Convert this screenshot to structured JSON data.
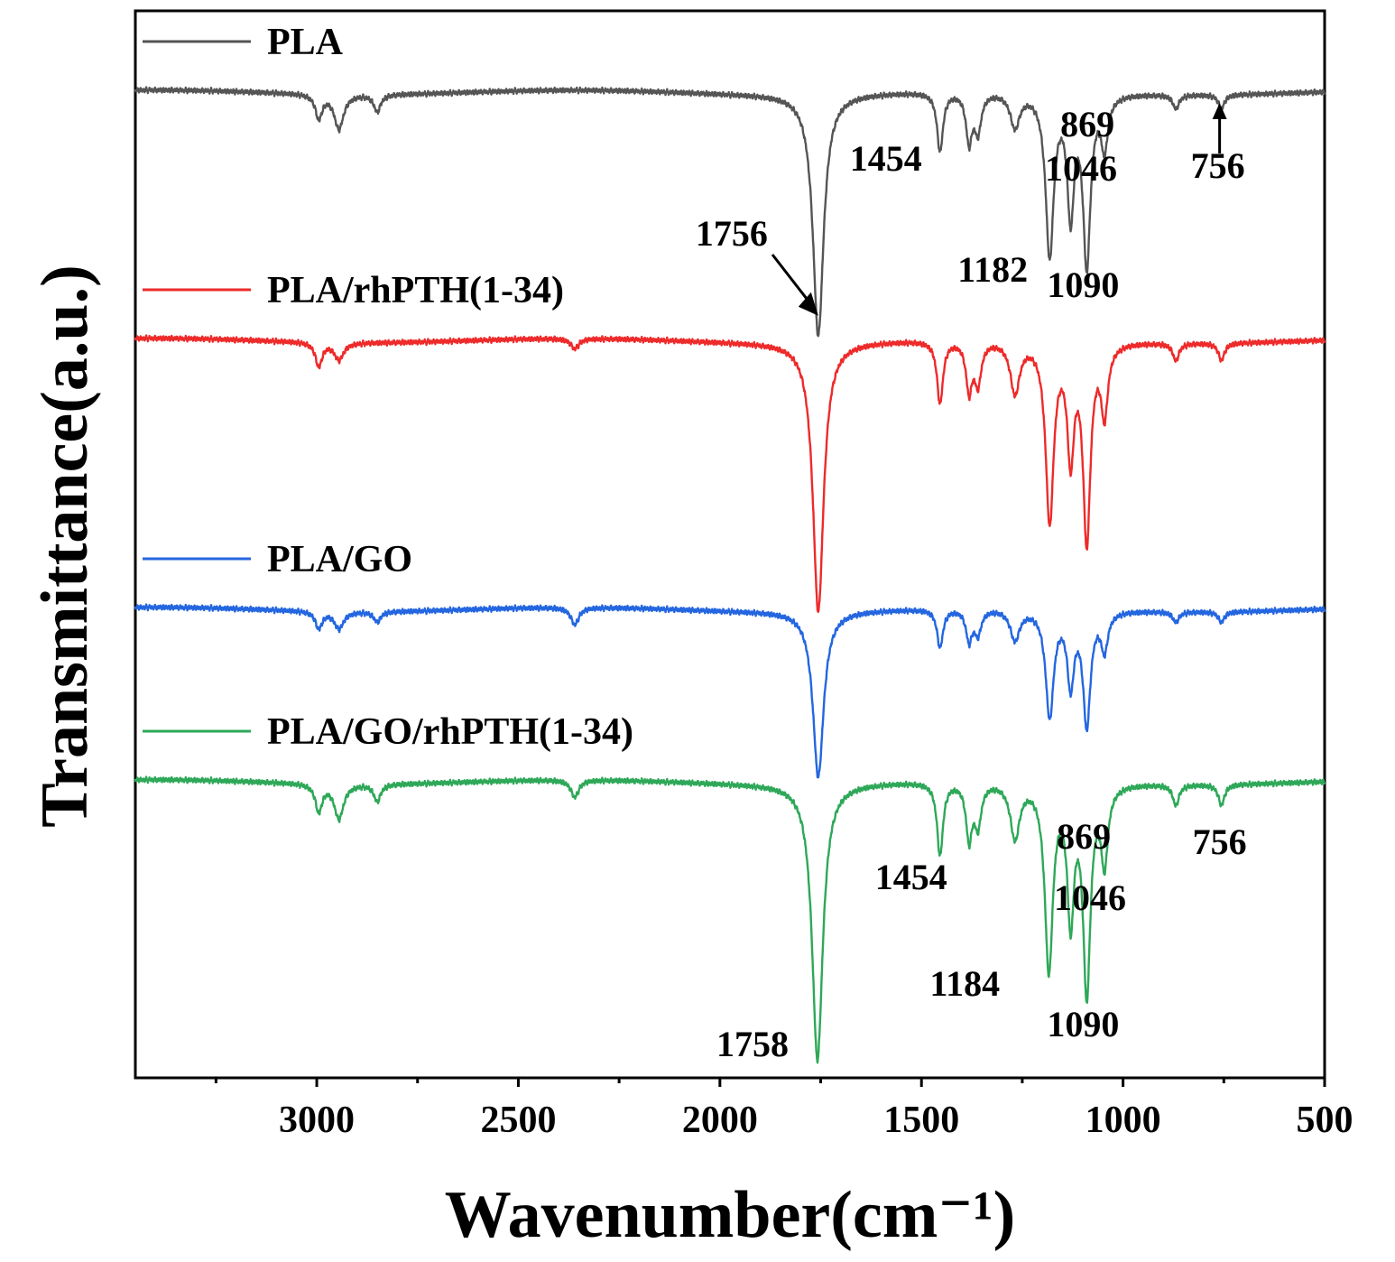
{
  "chart_data": {
    "type": "line",
    "title": "",
    "xlabel": "Wavenumber(cm⁻¹)",
    "ylabel": "Transmittance(a.u.)",
    "xlim": [
      3450,
      500
    ],
    "x_reversed": true,
    "y_ticks_shown": false,
    "grid": false,
    "legend_position": "inline above each trace",
    "xticks": [
      {
        "value": 3000,
        "label": "3000"
      },
      {
        "value": 2500,
        "label": "2500"
      },
      {
        "value": 2000,
        "label": "2000"
      },
      {
        "value": 1500,
        "label": "1500"
      },
      {
        "value": 1000,
        "label": "1000"
      },
      {
        "value": 500,
        "label": "500"
      }
    ],
    "minor_xticks": [
      3250,
      2750,
      2250,
      1750,
      1250,
      750
    ],
    "series": [
      {
        "name": "PLA",
        "color": "#555555",
        "baseline_offset": 3.0,
        "peaks": [
          {
            "wn": 2995,
            "depth": 0.07,
            "width": 10
          },
          {
            "wn": 2945,
            "depth": 0.1,
            "width": 14
          },
          {
            "wn": 2850,
            "depth": 0.05,
            "width": 10
          },
          {
            "wn": 1756,
            "depth": 0.7,
            "width": 16
          },
          {
            "wn": 1454,
            "depth": 0.17,
            "width": 9
          },
          {
            "wn": 1382,
            "depth": 0.14,
            "width": 9
          },
          {
            "wn": 1360,
            "depth": 0.11,
            "width": 10
          },
          {
            "wn": 1268,
            "depth": 0.1,
            "width": 14
          },
          {
            "wn": 1182,
            "depth": 0.47,
            "width": 12
          },
          {
            "wn": 1130,
            "depth": 0.34,
            "width": 10
          },
          {
            "wn": 1090,
            "depth": 0.49,
            "width": 11
          },
          {
            "wn": 1046,
            "depth": 0.15,
            "width": 10
          },
          {
            "wn": 869,
            "depth": 0.04,
            "width": 9
          },
          {
            "wn": 756,
            "depth": 0.04,
            "width": 9
          }
        ]
      },
      {
        "name": "PLA/rhPTH(1-34)",
        "color": "#ee2a2a",
        "baseline_offset": 2.28,
        "peaks": [
          {
            "wn": 2995,
            "depth": 0.07,
            "width": 10
          },
          {
            "wn": 2945,
            "depth": 0.05,
            "width": 14
          },
          {
            "wn": 2360,
            "depth": 0.03,
            "width": 12
          },
          {
            "wn": 1756,
            "depth": 0.78,
            "width": 16
          },
          {
            "wn": 1454,
            "depth": 0.18,
            "width": 9
          },
          {
            "wn": 1382,
            "depth": 0.14,
            "width": 9
          },
          {
            "wn": 1360,
            "depth": 0.12,
            "width": 10
          },
          {
            "wn": 1268,
            "depth": 0.15,
            "width": 14
          },
          {
            "wn": 1182,
            "depth": 0.52,
            "width": 12
          },
          {
            "wn": 1130,
            "depth": 0.32,
            "width": 10
          },
          {
            "wn": 1090,
            "depth": 0.57,
            "width": 11
          },
          {
            "wn": 1046,
            "depth": 0.2,
            "width": 10
          },
          {
            "wn": 869,
            "depth": 0.05,
            "width": 9
          },
          {
            "wn": 756,
            "depth": 0.05,
            "width": 9
          }
        ]
      },
      {
        "name": "PLA/GO",
        "color": "#2466e0",
        "baseline_offset": 1.5,
        "peaks": [
          {
            "wn": 2995,
            "depth": 0.05,
            "width": 10
          },
          {
            "wn": 2945,
            "depth": 0.05,
            "width": 14
          },
          {
            "wn": 2850,
            "depth": 0.03,
            "width": 10
          },
          {
            "wn": 2360,
            "depth": 0.05,
            "width": 12
          },
          {
            "wn": 1756,
            "depth": 0.48,
            "width": 16
          },
          {
            "wn": 1454,
            "depth": 0.11,
            "width": 9
          },
          {
            "wn": 1382,
            "depth": 0.09,
            "width": 9
          },
          {
            "wn": 1360,
            "depth": 0.07,
            "width": 10
          },
          {
            "wn": 1268,
            "depth": 0.09,
            "width": 14
          },
          {
            "wn": 1182,
            "depth": 0.31,
            "width": 12
          },
          {
            "wn": 1130,
            "depth": 0.21,
            "width": 10
          },
          {
            "wn": 1090,
            "depth": 0.33,
            "width": 11
          },
          {
            "wn": 1046,
            "depth": 0.11,
            "width": 10
          },
          {
            "wn": 869,
            "depth": 0.03,
            "width": 9
          },
          {
            "wn": 756,
            "depth": 0.03,
            "width": 9
          }
        ]
      },
      {
        "name": "PLA/GO/rhPTH(1-34)",
        "color": "#2ea858",
        "baseline_offset": 1.0,
        "peaks": [
          {
            "wn": 2995,
            "depth": 0.08,
            "width": 10
          },
          {
            "wn": 2945,
            "depth": 0.1,
            "width": 14
          },
          {
            "wn": 2850,
            "depth": 0.05,
            "width": 10
          },
          {
            "wn": 2360,
            "depth": 0.05,
            "width": 12
          },
          {
            "wn": 1758,
            "depth": 0.8,
            "width": 16
          },
          {
            "wn": 1454,
            "depth": 0.21,
            "width": 9
          },
          {
            "wn": 1382,
            "depth": 0.16,
            "width": 9
          },
          {
            "wn": 1360,
            "depth": 0.12,
            "width": 10
          },
          {
            "wn": 1268,
            "depth": 0.16,
            "width": 14
          },
          {
            "wn": 1184,
            "depth": 0.54,
            "width": 12
          },
          {
            "wn": 1130,
            "depth": 0.38,
            "width": 10
          },
          {
            "wn": 1090,
            "depth": 0.6,
            "width": 11
          },
          {
            "wn": 1046,
            "depth": 0.22,
            "width": 10
          },
          {
            "wn": 869,
            "depth": 0.06,
            "width": 9
          },
          {
            "wn": 756,
            "depth": 0.06,
            "width": 9
          }
        ]
      }
    ],
    "annotations": [
      {
        "text": "1454",
        "series": "PLA",
        "wn": 1454
      },
      {
        "text": "1756",
        "series": "PLA",
        "wn": 1756,
        "arrow": true
      },
      {
        "text": "1182",
        "series": "PLA",
        "wn": 1182
      },
      {
        "text": "1090",
        "series": "PLA",
        "wn": 1090
      },
      {
        "text": "1046",
        "series": "PLA",
        "wn": 1046
      },
      {
        "text": "869",
        "series": "PLA",
        "wn": 869
      },
      {
        "text": "756",
        "series": "PLA",
        "wn": 756,
        "arrow": true
      },
      {
        "text": "1454",
        "series": "PLA/GO/rhPTH(1-34)",
        "wn": 1454
      },
      {
        "text": "869",
        "series": "PLA/GO/rhPTH(1-34)",
        "wn": 869
      },
      {
        "text": "756",
        "series": "PLA/GO/rhPTH(1-34)",
        "wn": 756
      },
      {
        "text": "1046",
        "series": "PLA/GO/rhPTH(1-34)",
        "wn": 1046
      },
      {
        "text": "1184",
        "series": "PLA/GO/rhPTH(1-34)",
        "wn": 1184
      },
      {
        "text": "1090",
        "series": "PLA/GO/rhPTH(1-34)",
        "wn": 1090
      },
      {
        "text": "1758",
        "series": "PLA/GO/rhPTH(1-34)",
        "wn": 1758
      }
    ]
  }
}
